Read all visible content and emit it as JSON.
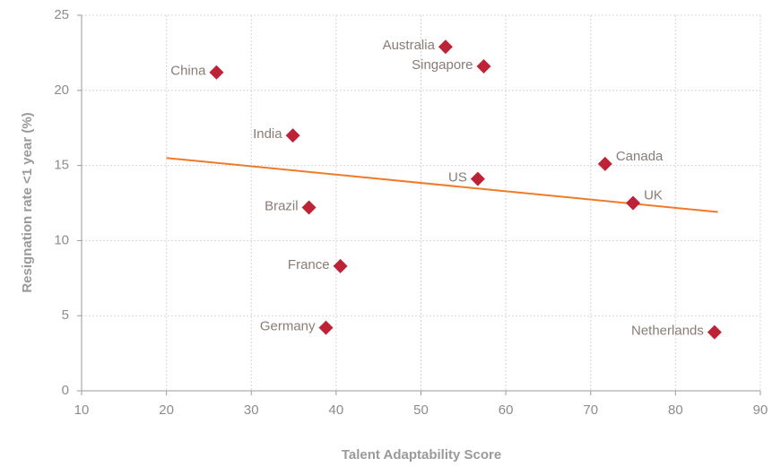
{
  "chart_data": {
    "type": "scatter",
    "xlabel": "Talent Adaptability Score",
    "ylabel": "Resignation rate <1 year (%)",
    "labels": [
      "China",
      "Australia",
      "Singapore",
      "India",
      "Canada",
      "US",
      "UK",
      "Brazil",
      "France",
      "Germany",
      "Netherlands"
    ],
    "x": [
      25.9,
      52.9,
      57.4,
      34.9,
      71.7,
      56.7,
      75.0,
      36.8,
      40.5,
      38.8,
      84.6
    ],
    "values": [
      21.2,
      22.9,
      21.6,
      17.0,
      15.1,
      14.1,
      12.5,
      12.2,
      8.3,
      4.2,
      3.9
    ],
    "color": "#be2236",
    "trend": {
      "x": [
        20,
        85
      ],
      "y": [
        15.5,
        11.9
      ],
      "color": "#f07a2a"
    },
    "xlim": [
      10,
      90
    ],
    "xticks": [
      10,
      20,
      30,
      40,
      50,
      60,
      70,
      80,
      90
    ],
    "ylim": [
      0,
      25
    ],
    "yticks": [
      0,
      5,
      10,
      15,
      20,
      25
    ],
    "grid": true
  }
}
